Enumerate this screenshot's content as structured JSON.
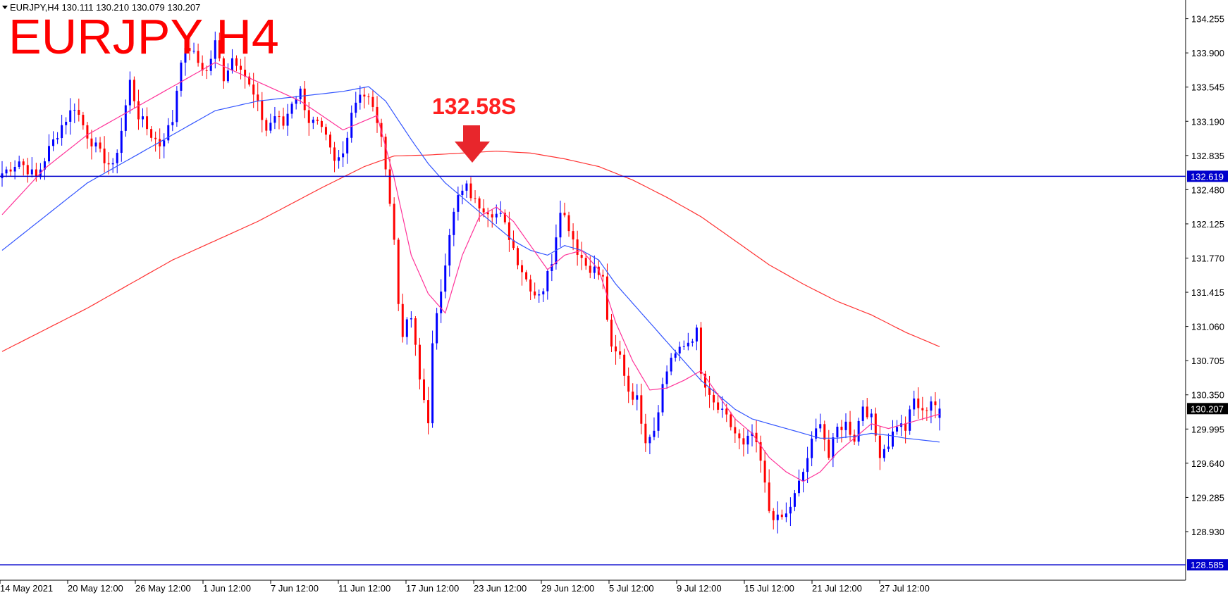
{
  "header": {
    "info_line": "EURJPY,H4  130.111 130.210 130.079 130.207",
    "big_title": "EURJPY H4"
  },
  "annotation": {
    "label": "132.58S",
    "color": "#e8262c",
    "arrow": "down-arrow-icon"
  },
  "chart_data": {
    "type": "candlestick",
    "symbol": "EURJPY",
    "timeframe": "H4",
    "ohlc_last": {
      "open": 130.111,
      "high": 130.21,
      "low": 130.079,
      "close": 130.207
    },
    "ylim": [
      128.44,
      134.42
    ],
    "y_ticks": [
      "134.255",
      "133.900",
      "133.545",
      "133.190",
      "132.835",
      "132.480",
      "132.125",
      "131.770",
      "131.415",
      "131.060",
      "130.705",
      "130.350",
      "129.995",
      "129.640",
      "129.285",
      "128.930"
    ],
    "x_ticks": [
      "14 May 2021",
      "20 May 12:00",
      "26 May 12:00",
      "1 Jun 12:00",
      "7 Jun 12:00",
      "11 Jun 12:00",
      "17 Jun 12:00",
      "23 Jun 12:00",
      "29 Jun 12:00",
      "5 Jul 12:00",
      "9 Jul 12:00",
      "15 Jul 12:00",
      "21 Jul 12:00",
      "27 Jul 12:00"
    ],
    "current_price": "130.207",
    "horizontal_levels": [
      {
        "value": 132.619,
        "label": "132.619",
        "color": "#0000cc"
      },
      {
        "value": 128.585,
        "label": "128.585",
        "color": "#0000cc"
      }
    ],
    "colors": {
      "bull": "#0000ff",
      "bear": "#ff0000",
      "ma_fast": "#ff3399",
      "ma_mid": "#3355ff",
      "ma_slow": "#ff3333",
      "grid": "none"
    },
    "close_path": [
      [
        0,
        132.65
      ],
      [
        4,
        132.78
      ],
      [
        8,
        132.6
      ],
      [
        11,
        132.9
      ],
      [
        14,
        133.15
      ],
      [
        17,
        133.35
      ],
      [
        20,
        133.05
      ],
      [
        23,
        132.85
      ],
      [
        26,
        132.7
      ],
      [
        28,
        133.1
      ],
      [
        30,
        133.6
      ],
      [
        32,
        133.25
      ],
      [
        35,
        133.05
      ],
      [
        37,
        132.95
      ],
      [
        40,
        133.2
      ],
      [
        42,
        133.85
      ],
      [
        44,
        133.95
      ],
      [
        46,
        133.8
      ],
      [
        48,
        133.7
      ],
      [
        50,
        134.0
      ],
      [
        52,
        133.65
      ],
      [
        54,
        133.85
      ],
      [
        56,
        133.78
      ],
      [
        58,
        133.55
      ],
      [
        60,
        133.35
      ],
      [
        62,
        133.1
      ],
      [
        64,
        133.25
      ],
      [
        66,
        133.15
      ],
      [
        68,
        133.4
      ],
      [
        70,
        133.5
      ],
      [
        72,
        133.2
      ],
      [
        74,
        133.15
      ],
      [
        76,
        133.0
      ],
      [
        78,
        132.75
      ],
      [
        80,
        132.85
      ],
      [
        82,
        133.3
      ],
      [
        84,
        133.5
      ],
      [
        86,
        133.42
      ],
      [
        88,
        133.2
      ],
      [
        90,
        132.75
      ],
      [
        92,
        131.95
      ],
      [
        93,
        131.3
      ],
      [
        94,
        131.0
      ],
      [
        96,
        131.15
      ],
      [
        98,
        130.5
      ],
      [
        100,
        130.1
      ],
      [
        101,
        130.85
      ],
      [
        103,
        131.45
      ],
      [
        105,
        132.05
      ],
      [
        107,
        132.4
      ],
      [
        109,
        132.5
      ],
      [
        111,
        132.35
      ],
      [
        113,
        132.3
      ],
      [
        115,
        132.25
      ],
      [
        117,
        132.2
      ],
      [
        119,
        132.0
      ],
      [
        121,
        131.75
      ],
      [
        123,
        131.55
      ],
      [
        125,
        131.4
      ],
      [
        127,
        131.45
      ],
      [
        129,
        131.75
      ],
      [
        131,
        132.3
      ],
      [
        133,
        132.1
      ],
      [
        135,
        131.85
      ],
      [
        137,
        131.7
      ],
      [
        139,
        131.65
      ],
      [
        141,
        131.55
      ],
      [
        142,
        131.15
      ],
      [
        143,
        130.8
      ],
      [
        145,
        130.75
      ],
      [
        147,
        130.4
      ],
      [
        149,
        130.3
      ],
      [
        151,
        129.9
      ],
      [
        153,
        130.0
      ],
      [
        155,
        130.45
      ],
      [
        157,
        130.75
      ],
      [
        159,
        130.8
      ],
      [
        161,
        130.9
      ],
      [
        163,
        131.0
      ],
      [
        164,
        130.55
      ],
      [
        166,
        130.3
      ],
      [
        168,
        130.2
      ],
      [
        170,
        130.1
      ],
      [
        172,
        129.95
      ],
      [
        174,
        129.8
      ],
      [
        176,
        129.95
      ],
      [
        178,
        129.65
      ],
      [
        180,
        129.15
      ],
      [
        182,
        129.05
      ],
      [
        184,
        129.1
      ],
      [
        186,
        129.3
      ],
      [
        188,
        129.55
      ],
      [
        190,
        129.85
      ],
      [
        192,
        130.1
      ],
      [
        194,
        129.7
      ],
      [
        196,
        130.0
      ],
      [
        198,
        130.05
      ],
      [
        200,
        129.9
      ],
      [
        202,
        130.25
      ],
      [
        204,
        130.1
      ],
      [
        206,
        129.75
      ],
      [
        208,
        129.85
      ],
      [
        210,
        130.05
      ],
      [
        212,
        130.0
      ],
      [
        214,
        130.3
      ],
      [
        216,
        130.15
      ],
      [
        218,
        130.3
      ],
      [
        220,
        130.207
      ]
    ],
    "ma_fast_path": [
      [
        0,
        132.22
      ],
      [
        10,
        132.7
      ],
      [
        20,
        133.05
      ],
      [
        30,
        133.3
      ],
      [
        40,
        133.55
      ],
      [
        50,
        133.8
      ],
      [
        60,
        133.6
      ],
      [
        70,
        133.4
      ],
      [
        80,
        133.1
      ],
      [
        88,
        133.25
      ],
      [
        92,
        132.6
      ],
      [
        96,
        131.8
      ],
      [
        100,
        131.4
      ],
      [
        104,
        131.2
      ],
      [
        108,
        131.8
      ],
      [
        112,
        132.2
      ],
      [
        116,
        132.3
      ],
      [
        120,
        132.15
      ],
      [
        124,
        131.9
      ],
      [
        128,
        131.65
      ],
      [
        132,
        131.8
      ],
      [
        136,
        131.85
      ],
      [
        140,
        131.65
      ],
      [
        144,
        131.1
      ],
      [
        148,
        130.7
      ],
      [
        152,
        130.4
      ],
      [
        156,
        130.42
      ],
      [
        160,
        130.5
      ],
      [
        164,
        130.6
      ],
      [
        168,
        130.35
      ],
      [
        172,
        130.1
      ],
      [
        176,
        129.95
      ],
      [
        180,
        129.7
      ],
      [
        184,
        129.55
      ],
      [
        188,
        129.45
      ],
      [
        192,
        129.55
      ],
      [
        196,
        129.75
      ],
      [
        200,
        129.9
      ],
      [
        204,
        130.05
      ],
      [
        208,
        130.0
      ],
      [
        212,
        130.05
      ],
      [
        216,
        130.1
      ],
      [
        220,
        130.15
      ]
    ],
    "ma_mid_path": [
      [
        0,
        131.85
      ],
      [
        10,
        132.2
      ],
      [
        20,
        132.55
      ],
      [
        30,
        132.8
      ],
      [
        40,
        133.05
      ],
      [
        50,
        133.3
      ],
      [
        60,
        133.4
      ],
      [
        70,
        133.45
      ],
      [
        80,
        133.5
      ],
      [
        86,
        133.55
      ],
      [
        90,
        133.4
      ],
      [
        96,
        133.0
      ],
      [
        100,
        132.75
      ],
      [
        104,
        132.55
      ],
      [
        108,
        132.4
      ],
      [
        112,
        132.25
      ],
      [
        116,
        132.1
      ],
      [
        120,
        131.95
      ],
      [
        124,
        131.85
      ],
      [
        128,
        131.8
      ],
      [
        132,
        131.9
      ],
      [
        136,
        131.85
      ],
      [
        140,
        131.75
      ],
      [
        144,
        131.5
      ],
      [
        148,
        131.3
      ],
      [
        152,
        131.1
      ],
      [
        156,
        130.9
      ],
      [
        160,
        130.7
      ],
      [
        164,
        130.5
      ],
      [
        168,
        130.35
      ],
      [
        172,
        130.2
      ],
      [
        176,
        130.1
      ],
      [
        180,
        130.05
      ],
      [
        184,
        130.0
      ],
      [
        188,
        129.95
      ],
      [
        192,
        129.9
      ],
      [
        196,
        129.9
      ],
      [
        200,
        129.92
      ],
      [
        204,
        129.95
      ],
      [
        208,
        129.93
      ],
      [
        212,
        129.9
      ],
      [
        216,
        129.88
      ],
      [
        220,
        129.86
      ]
    ],
    "ma_slow_path": [
      [
        0,
        130.8
      ],
      [
        20,
        131.25
      ],
      [
        40,
        131.75
      ],
      [
        60,
        132.15
      ],
      [
        75,
        132.5
      ],
      [
        85,
        132.72
      ],
      [
        92,
        132.83
      ],
      [
        100,
        132.84
      ],
      [
        108,
        132.86
      ],
      [
        116,
        132.88
      ],
      [
        124,
        132.86
      ],
      [
        132,
        132.8
      ],
      [
        140,
        132.72
      ],
      [
        148,
        132.58
      ],
      [
        156,
        132.4
      ],
      [
        164,
        132.2
      ],
      [
        172,
        131.95
      ],
      [
        180,
        131.7
      ],
      [
        188,
        131.5
      ],
      [
        196,
        131.32
      ],
      [
        204,
        131.18
      ],
      [
        212,
        131.0
      ],
      [
        220,
        130.85
      ]
    ]
  }
}
